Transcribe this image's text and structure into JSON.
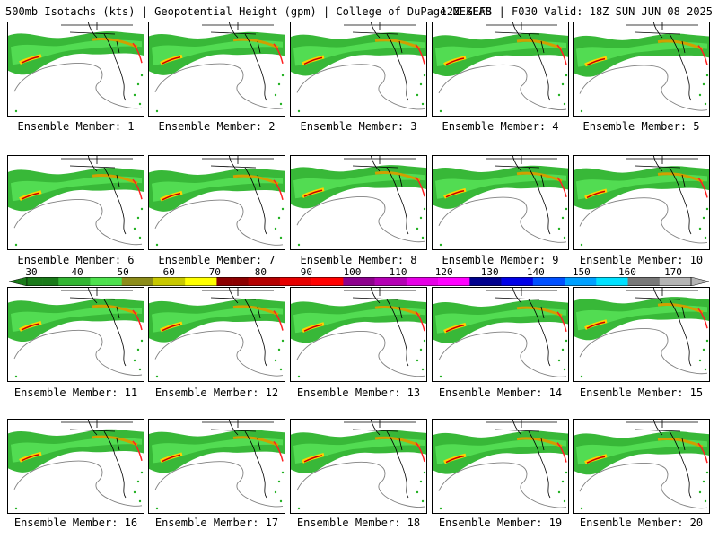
{
  "header": {
    "left": "500mb Isotachs (kts) | Geopotential Height (gpm) | College of DuPage NEXLAB",
    "right": "12Z GEFS | F030 Valid: 18Z SUN JUN 08 2025"
  },
  "colorbar": {
    "labels": [
      "30",
      "40",
      "50",
      "60",
      "70",
      "80",
      "90",
      "100",
      "110",
      "120",
      "130",
      "140",
      "150",
      "160",
      "170"
    ],
    "colors": [
      "#1a7a1a",
      "#1a7a1a",
      "#33b533",
      "#33b533",
      "#4de04d",
      "#4de04d",
      "#8c8c1a",
      "#8c8c1a",
      "#c8c800",
      "#c8c800",
      "#ffff00",
      "#ffff00",
      "#8c0000",
      "#8c0000",
      "#b40000",
      "#b40000",
      "#e60000",
      "#e60000",
      "#ff0000",
      "#ff0000",
      "#8c008c",
      "#8c008c",
      "#b400b4",
      "#b400b4",
      "#e600e6",
      "#e600e6",
      "#ff00ff",
      "#ff00ff",
      "#00008c",
      "#00008c",
      "#0000e6",
      "#0000e6",
      "#0050ff",
      "#0050ff",
      "#00a0ff",
      "#00a0ff",
      "#00e0ff",
      "#00e0ff",
      "#787878",
      "#787878",
      "#b4b4b4",
      "#b4b4b4"
    ]
  },
  "members": [
    "Ensemble Member: 1",
    "Ensemble Member: 2",
    "Ensemble Member: 3",
    "Ensemble Member: 4",
    "Ensemble Member: 5",
    "Ensemble Member: 6",
    "Ensemble Member: 7",
    "Ensemble Member: 8",
    "Ensemble Member: 9",
    "Ensemble Member: 10",
    "Ensemble Member: 11",
    "Ensemble Member: 12",
    "Ensemble Member: 13",
    "Ensemble Member: 14",
    "Ensemble Member: 15",
    "Ensemble Member: 16",
    "Ensemble Member: 17",
    "Ensemble Member: 18",
    "Ensemble Member: 19",
    "Ensemble Member: 20"
  ]
}
